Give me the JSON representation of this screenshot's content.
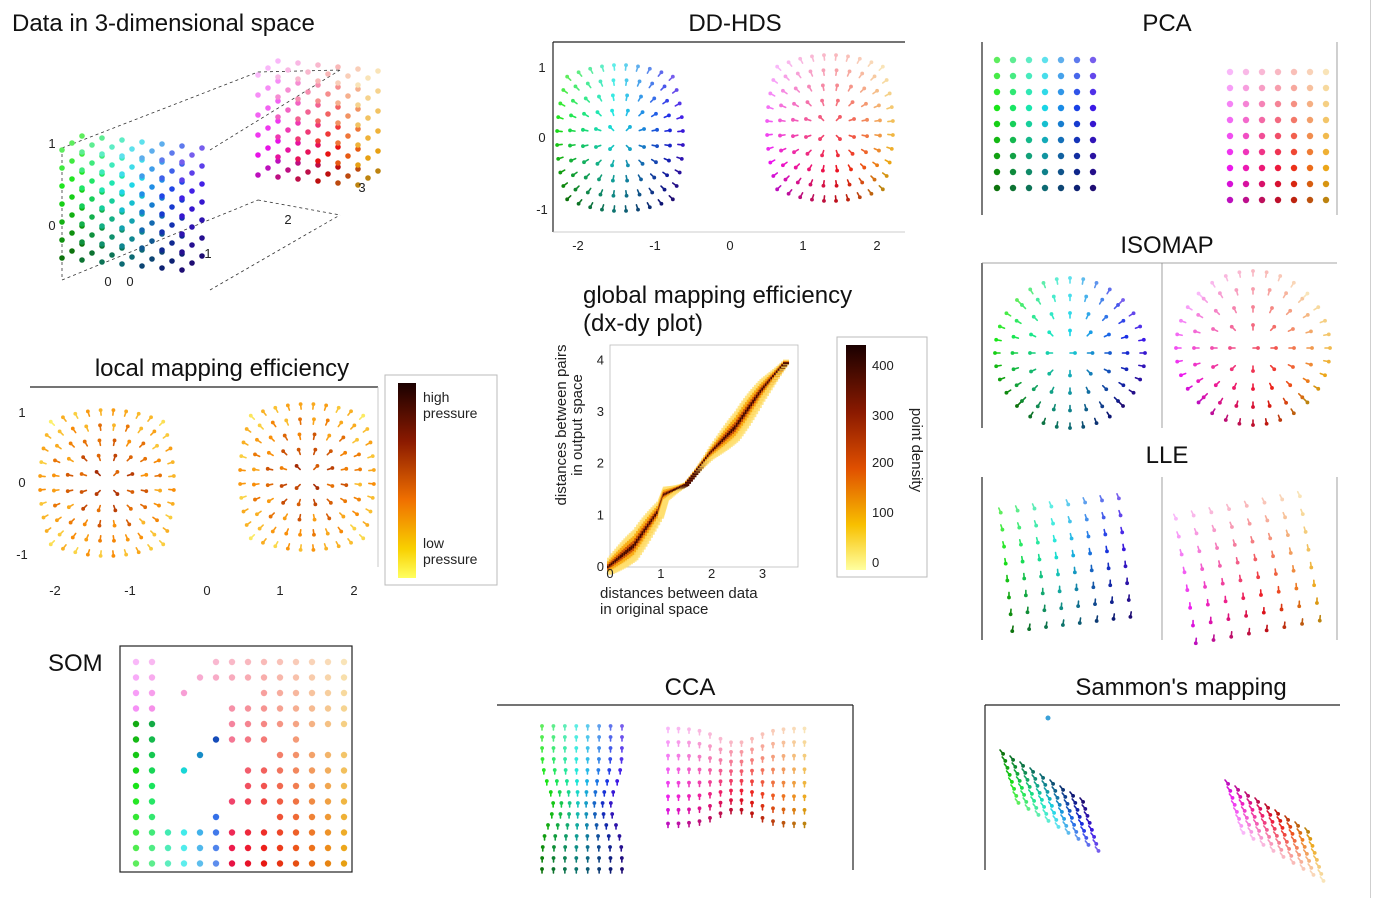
{
  "panels": {
    "data3d": {
      "title": "Data in 3-dimensional space",
      "ticks": [
        "1",
        "0",
        "0",
        "0",
        "1",
        "2",
        "3"
      ]
    },
    "ddhds": {
      "title": "DD-HDS",
      "yticks": [
        "1",
        "0",
        "-1"
      ],
      "xticks": [
        "-2",
        "-1",
        "0",
        "1",
        "2"
      ]
    },
    "pca": {
      "title": "PCA"
    },
    "isomap": {
      "title": "ISOMAP"
    },
    "lle": {
      "title": "LLE"
    },
    "local": {
      "title": "local mapping efficiency",
      "yticks": [
        "1",
        "0",
        "-1"
      ],
      "xticks": [
        "-2",
        "-1",
        "0",
        "1",
        "2"
      ],
      "colorbar": {
        "high": "high pressure",
        "low": "low pressure"
      }
    },
    "global": {
      "title_line1": "global mapping efficiency",
      "title_line2": "(dx-dy plot)",
      "ylabel_line1": "distances between pairs",
      "ylabel_line2": "in output space",
      "xlabel_line1": "distances between data",
      "xlabel_line2": "in original space",
      "xticks": [
        "0",
        "1",
        "2",
        "3"
      ],
      "yticks": [
        "0",
        "1",
        "2",
        "3",
        "4"
      ],
      "colorbar": {
        "label": "point density",
        "ticks": [
          "400",
          "300",
          "200",
          "100",
          "0"
        ]
      }
    },
    "som": {
      "title": "SOM"
    },
    "cca": {
      "title": "CCA"
    },
    "sammon": {
      "title": "Sammon's mapping"
    }
  },
  "chart_data": [
    {
      "type": "scatter",
      "title": "Data in 3-dimensional space",
      "description_kind": "two cubes of grid points"
    },
    {
      "type": "scatter",
      "title": "DD-HDS",
      "xlim": [
        -2.5,
        2.5
      ],
      "ylim": [
        -1.2,
        1.2
      ]
    },
    {
      "type": "heatmap",
      "title": "global mapping efficiency (dx-dy plot)",
      "xlabel": "distances between data in original space",
      "ylabel": "distances between pairs in output space",
      "xlim": [
        0,
        3.7
      ],
      "ylim": [
        0,
        4.3
      ],
      "colorbar_range": [
        0,
        400
      ],
      "trend": [
        [
          0,
          0
        ],
        [
          0.5,
          0.4
        ],
        [
          1.0,
          1.1
        ],
        [
          1.1,
          1.4
        ],
        [
          1.5,
          1.6
        ],
        [
          2.0,
          2.2
        ],
        [
          2.5,
          2.7
        ],
        [
          3.0,
          3.4
        ],
        [
          3.5,
          4.0
        ]
      ]
    }
  ],
  "colors": {
    "ink": "#111111",
    "frame": "#222222"
  }
}
